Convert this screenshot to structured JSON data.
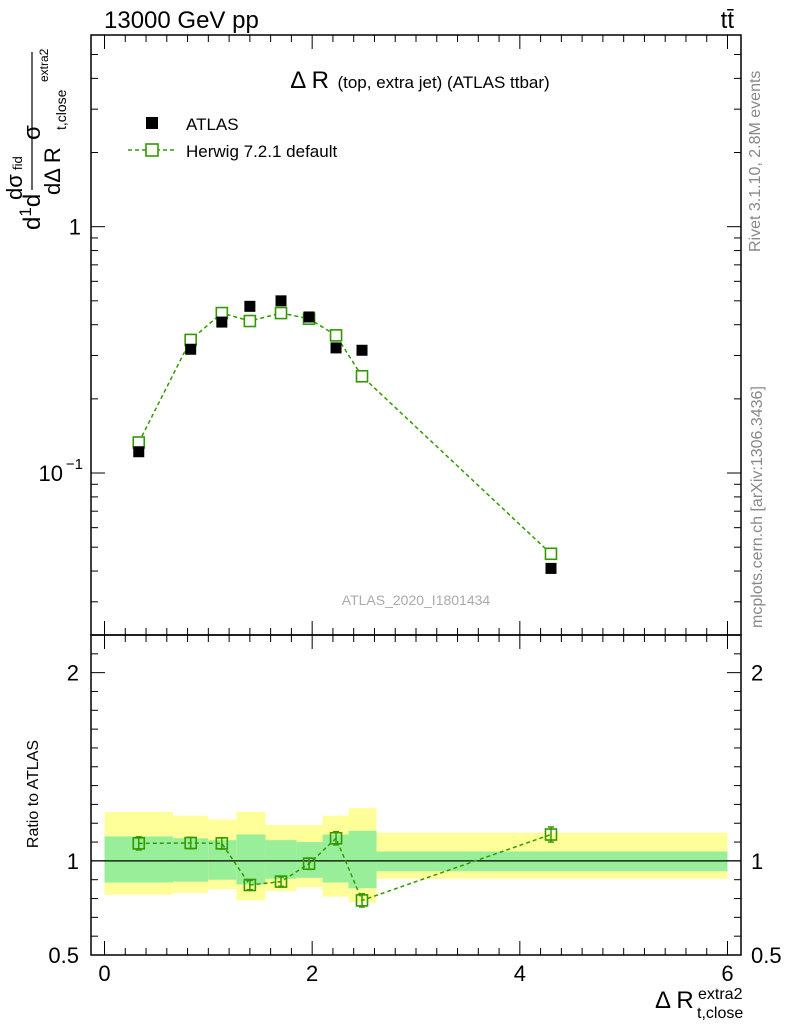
{
  "header": {
    "energy_label": "13000 GeV pp",
    "process_label": "tt̄"
  },
  "side_labels": {
    "rivet": "Rivet 3.1.10,  2.8M events",
    "mcplots": "mcplots.cern.ch [arXiv:1306.3436]"
  },
  "watermark": "ATLAS_2020_I1801434",
  "chart_data": [
    {
      "type": "scatter",
      "panel": "main",
      "title_main": "Δ R",
      "title_detail": "(top, extra jet) (ATLAS ttbar)",
      "ylabel": "dσ/dΔ R_t,close^extra2 · 1/σ · dσ^fid",
      "yscale": "log",
      "ylim": [
        0.022,
        6.0
      ],
      "xlim": [
        -0.13,
        6.13
      ],
      "ytick_labels": [
        "10^-1",
        "1"
      ],
      "legend_placement": "top-left",
      "series": [
        {
          "name": "ATLAS",
          "style": "square-marker",
          "color": "#000000",
          "x": [
            0.33,
            0.83,
            1.13,
            1.4,
            1.7,
            1.97,
            2.23,
            2.48,
            4.3
          ],
          "y": [
            0.122,
            0.318,
            0.41,
            0.475,
            0.5,
            0.43,
            0.322,
            0.315,
            0.041
          ]
        },
        {
          "name": "Herwig 7.2.1 default",
          "style": "open-square-dashed-line",
          "color": "#339900",
          "x": [
            0.33,
            0.83,
            1.13,
            1.4,
            1.7,
            1.97,
            2.23,
            2.48,
            4.3
          ],
          "y": [
            0.133,
            0.347,
            0.446,
            0.414,
            0.446,
            0.423,
            0.362,
            0.247,
            0.047
          ],
          "yerr": [
            0.004,
            0.01,
            0.012,
            0.011,
            0.012,
            0.012,
            0.011,
            0.011,
            0.002
          ]
        }
      ]
    },
    {
      "type": "scatter",
      "panel": "ratio",
      "ylabel": "Ratio to ATLAS",
      "xlabel": "Δ R_t,close^extra2",
      "ylim": [
        0.5,
        2.2
      ],
      "xlim": [
        -0.13,
        6.13
      ],
      "xticks": [
        0,
        2,
        4,
        6
      ],
      "yticks": [
        0.5,
        1,
        2
      ],
      "bands": [
        {
          "x0": 0.0,
          "x1": 0.66,
          "inner": [
            0.885,
            1.13
          ],
          "outer": [
            0.82,
            1.26
          ]
        },
        {
          "x0": 0.66,
          "x1": 1.0,
          "inner": [
            0.89,
            1.12
          ],
          "outer": [
            0.83,
            1.24
          ]
        },
        {
          "x0": 1.0,
          "x1": 1.27,
          "inner": [
            0.9,
            1.11
          ],
          "outer": [
            0.85,
            1.22
          ]
        },
        {
          "x0": 1.27,
          "x1": 1.55,
          "inner": [
            0.875,
            1.14
          ],
          "outer": [
            0.79,
            1.26
          ]
        },
        {
          "x0": 1.55,
          "x1": 1.85,
          "inner": [
            0.905,
            1.11
          ],
          "outer": [
            0.84,
            1.19
          ]
        },
        {
          "x0": 1.85,
          "x1": 2.1,
          "inner": [
            0.91,
            1.1
          ],
          "outer": [
            0.86,
            1.19
          ]
        },
        {
          "x0": 2.1,
          "x1": 2.35,
          "inner": [
            0.885,
            1.14
          ],
          "outer": [
            0.81,
            1.24
          ]
        },
        {
          "x0": 2.35,
          "x1": 2.62,
          "inner": [
            0.855,
            1.16
          ],
          "outer": [
            0.78,
            1.28
          ]
        },
        {
          "x0": 2.62,
          "x1": 6.0,
          "inner": [
            0.945,
            1.05
          ],
          "outer": [
            0.905,
            1.15
          ]
        }
      ],
      "series": [
        {
          "name": "Herwig 7.2.1 default",
          "color": "#339900",
          "x": [
            0.33,
            0.83,
            1.13,
            1.4,
            1.7,
            1.97,
            2.23,
            2.48,
            4.3
          ],
          "y": [
            1.093,
            1.095,
            1.093,
            0.872,
            0.89,
            0.985,
            1.12,
            0.79,
            1.14
          ],
          "yerr": [
            0.035,
            0.03,
            0.03,
            0.025,
            0.025,
            0.03,
            0.035,
            0.035,
            0.04
          ]
        }
      ]
    }
  ]
}
